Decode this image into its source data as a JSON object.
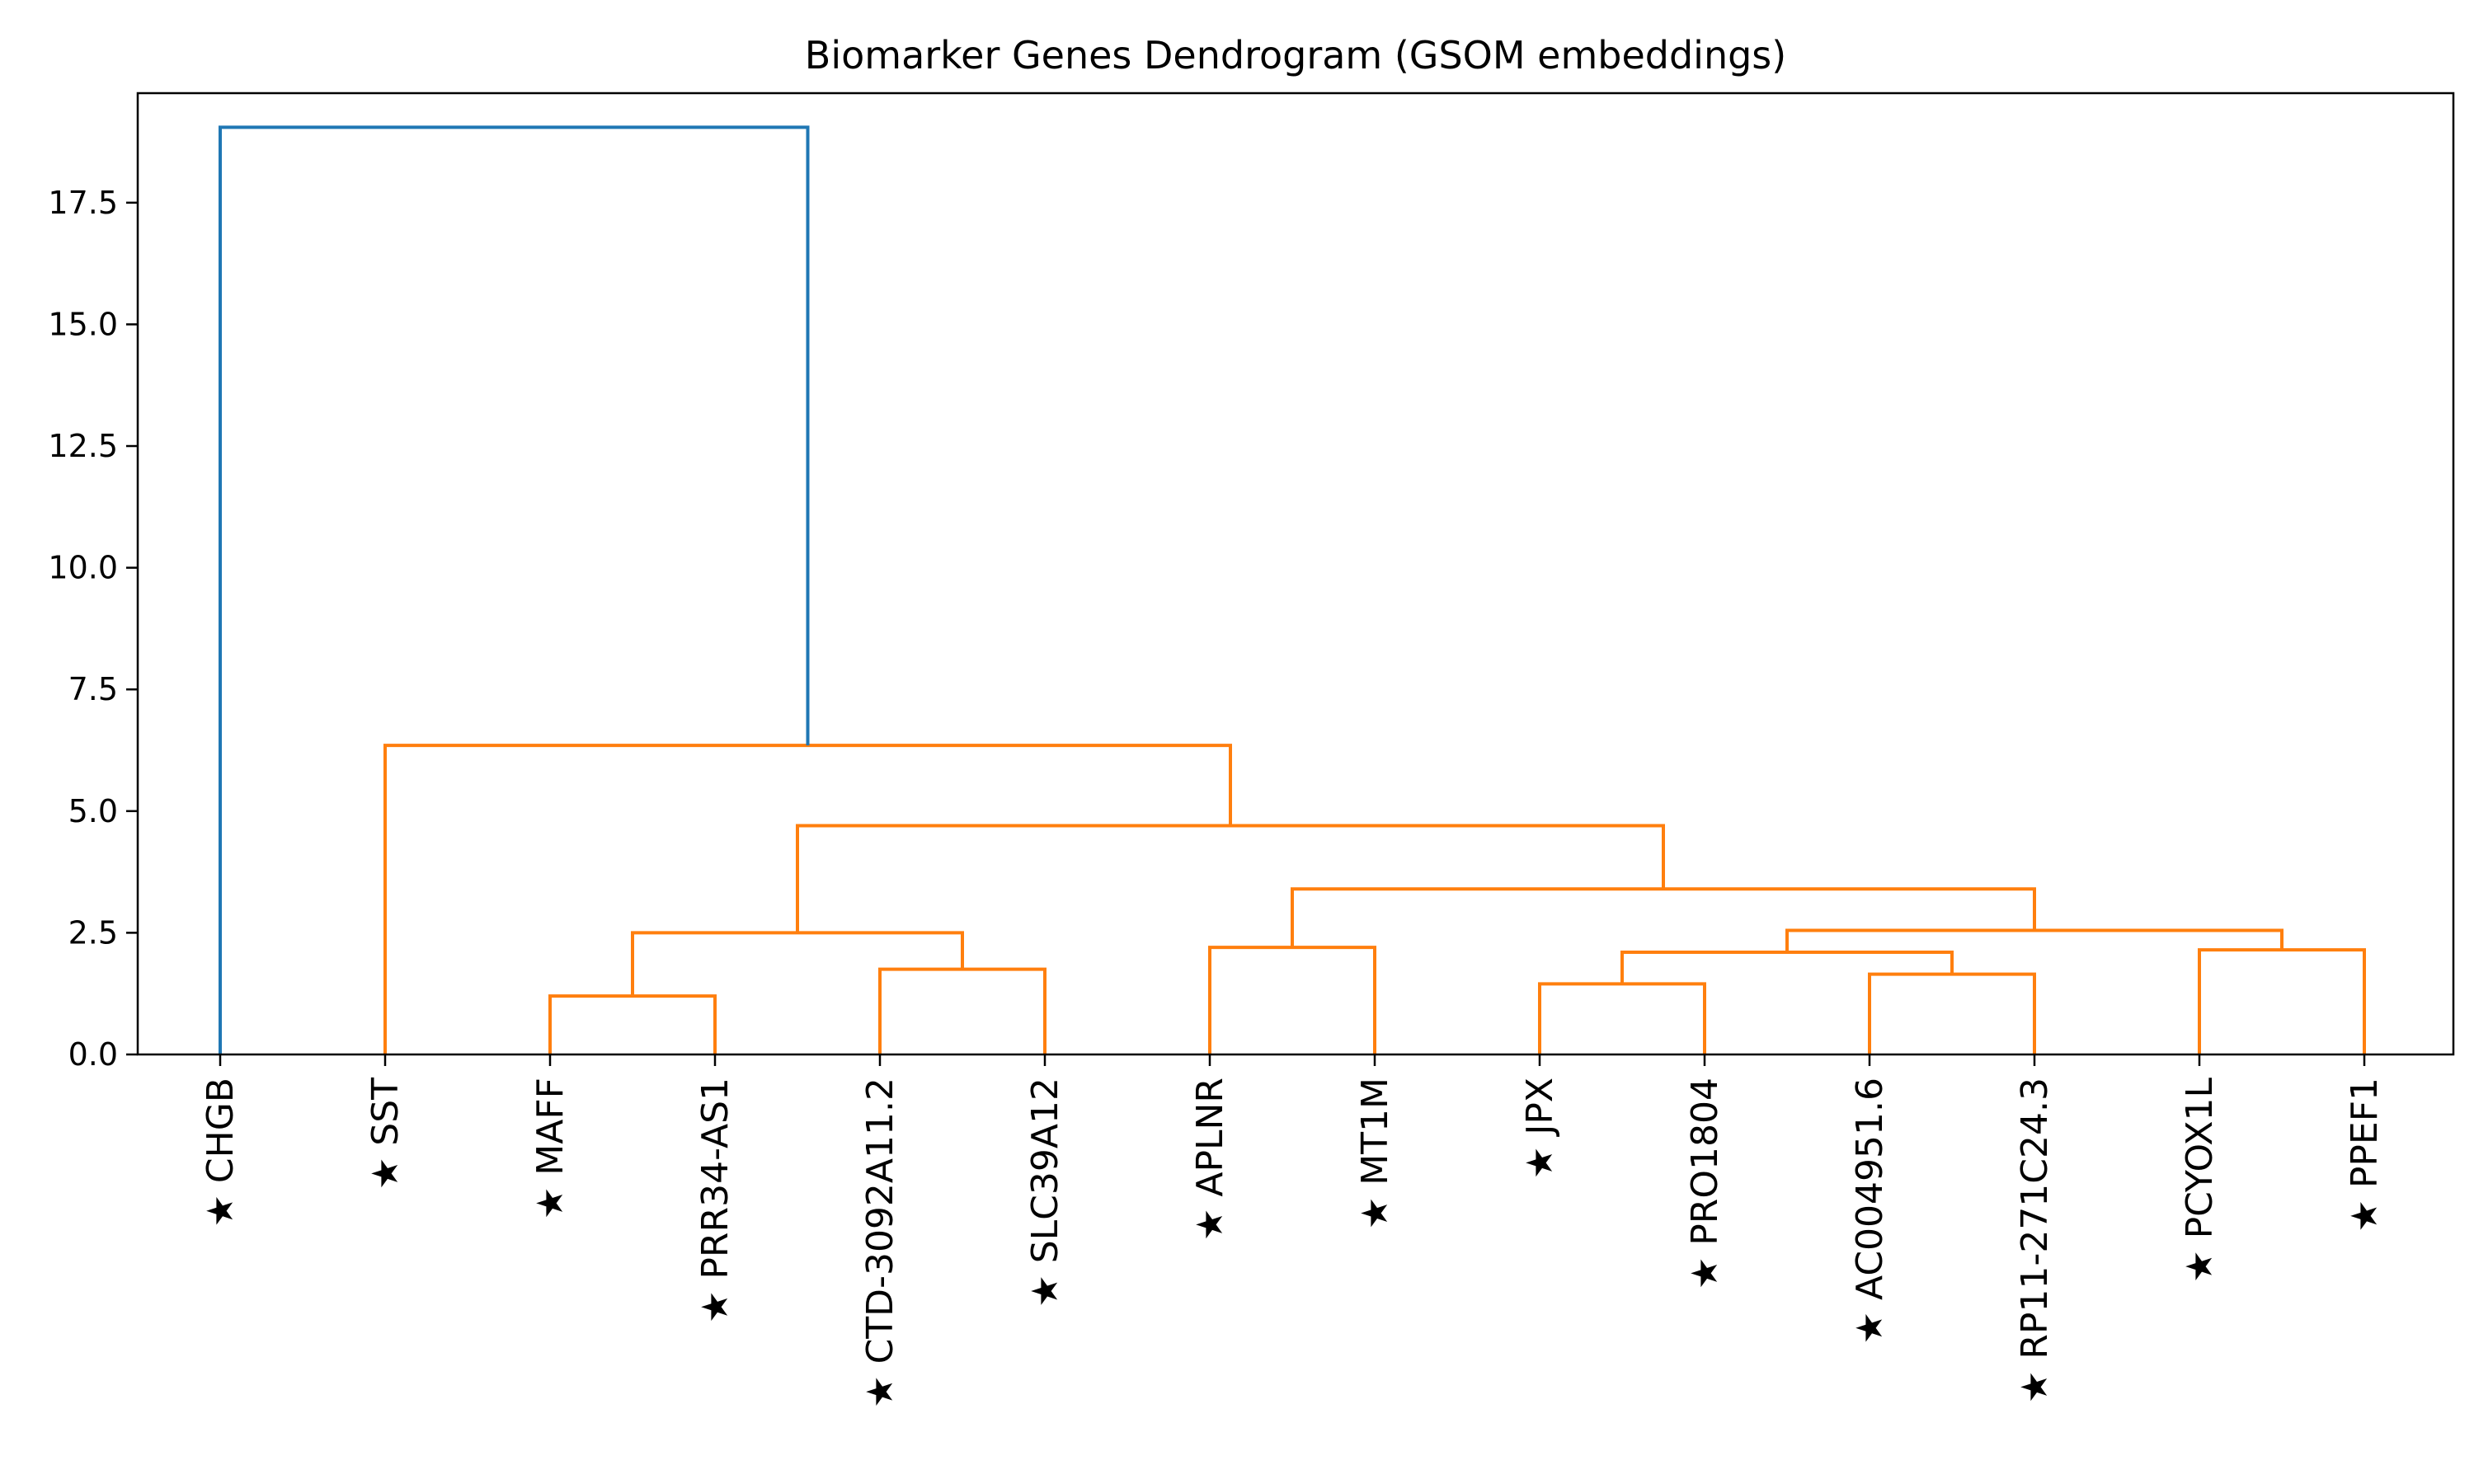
{
  "chart_data": {
    "type": "dendrogram",
    "title": "Biomarker Genes Dendrogram (GSOM embeddings)",
    "xlabel": "",
    "ylabel": "",
    "ylim": [
      0,
      19.75
    ],
    "yticks": [
      0.0,
      2.5,
      5.0,
      7.5,
      10.0,
      12.5,
      15.0,
      17.5
    ],
    "ytick_labels": [
      "0.0",
      "2.5",
      "5.0",
      "7.5",
      "10.0",
      "12.5",
      "15.0",
      "17.5"
    ],
    "grid": false,
    "leaves": [
      "★ CHGB",
      "★ SST",
      "★ MAFF",
      "★ PRR34-AS1",
      "★ CTD-3092A11.2",
      "★ SLC39A12",
      "★ APLNR",
      "★ MT1M",
      "★ JPX",
      "★ PRO1804",
      "★ AC004951.6",
      "★ RP11-271C24.3",
      "★ PCYOX1L",
      "★ PPEF1"
    ],
    "link_colors": {
      "above_threshold": "#1f77b4",
      "cluster": "#ff7f0e"
    },
    "merges": [
      {
        "left": "L2",
        "right": "L3",
        "height": 1.2,
        "color": "cluster"
      },
      {
        "left": "L4",
        "right": "L5",
        "height": 1.75,
        "color": "cluster"
      },
      {
        "left": "L6",
        "right": "L7",
        "height": 2.2,
        "color": "cluster"
      },
      {
        "left": "L8",
        "right": "L9",
        "height": 1.45,
        "color": "cluster"
      },
      {
        "left": "L10",
        "right": "L11",
        "height": 1.65,
        "color": "cluster"
      },
      {
        "left": "L12",
        "right": "L13",
        "height": 2.15,
        "color": "cluster"
      },
      {
        "left": "N3",
        "right": "N4",
        "height": 2.1,
        "color": "cluster"
      },
      {
        "left": "N0",
        "right": "N1",
        "height": 2.5,
        "color": "cluster"
      },
      {
        "left": "N6",
        "right": "N5",
        "height": 2.55,
        "color": "cluster"
      },
      {
        "left": "N2",
        "right": "N8",
        "height": 3.4,
        "color": "cluster"
      },
      {
        "left": "N7",
        "right": "N9",
        "height": 4.7,
        "color": "cluster"
      },
      {
        "left": "L1",
        "right": "N10",
        "height": 6.35,
        "color": "cluster"
      },
      {
        "left": "L0",
        "right": "N11",
        "height": 19.05,
        "color": "above_threshold"
      }
    ]
  }
}
